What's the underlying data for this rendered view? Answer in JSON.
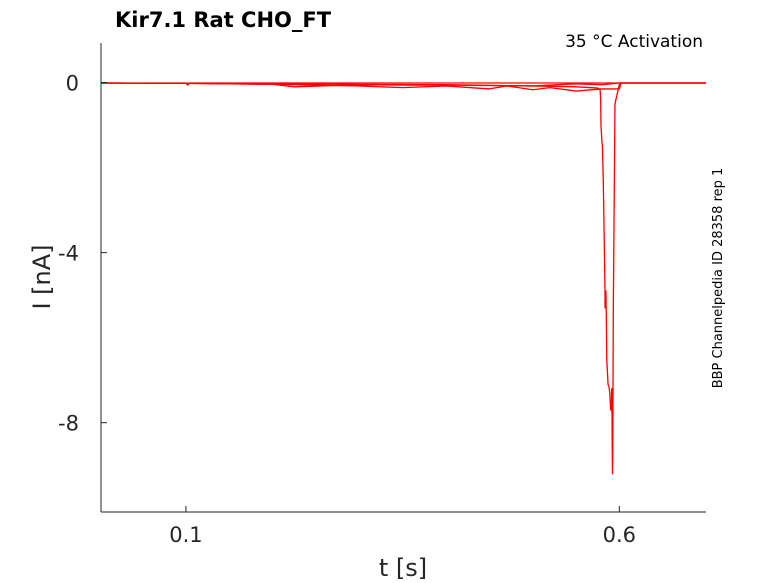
{
  "chart_data": {
    "type": "line",
    "title": "Kir7.1  Rat  CHO_FT",
    "subtitle": "35 °C  Activation",
    "side_label": "BBP Channelpedia ID 28358 rep 1",
    "xlabel": "t [s]",
    "ylabel": "I [nA]",
    "xlim": [
      0.002,
      0.7
    ],
    "ylim": [
      -10.1,
      0.93
    ],
    "xticks": [
      0.1,
      0.6
    ],
    "xtick_labels": [
      "0.1",
      "0.6"
    ],
    "yticks": [
      0,
      -4,
      -8
    ],
    "ytick_labels": [
      "0",
      "-4",
      "-8"
    ],
    "grid": false,
    "line_color": "#ff0000",
    "series": [
      {
        "x": [
          0.002,
          0.1,
          0.102,
          0.104,
          0.2,
          0.3,
          0.6,
          0.7
        ],
        "y": [
          -0.01,
          -0.01,
          -0.06,
          -0.01,
          -0.01,
          -0.01,
          -0.01,
          -0.01
        ]
      },
      {
        "x": [
          0.002,
          0.1,
          0.2,
          0.225,
          0.3,
          0.35,
          0.4,
          0.5,
          0.55,
          0.58,
          0.6,
          0.7
        ],
        "y": [
          -0.01,
          -0.02,
          -0.04,
          -0.1,
          -0.05,
          -0.06,
          -0.06,
          -0.08,
          -0.03,
          -0.05,
          -0.01,
          -0.01
        ]
      },
      {
        "x": [
          0.002,
          0.1,
          0.2,
          0.3,
          0.35,
          0.4,
          0.45,
          0.47,
          0.5,
          0.52,
          0.55,
          0.58,
          0.6,
          0.602,
          0.62,
          0.7
        ],
        "y": [
          -0.01,
          -0.02,
          -0.04,
          -0.08,
          -0.12,
          -0.08,
          -0.15,
          -0.08,
          -0.17,
          -0.12,
          -0.2,
          -0.15,
          -0.15,
          -0.01,
          -0.01,
          -0.01
        ]
      },
      {
        "x": [
          0.002,
          0.1,
          0.2,
          0.3,
          0.4,
          0.5,
          0.55,
          0.575,
          0.5778,
          0.5785,
          0.5788,
          0.58,
          0.5805,
          0.5815,
          0.5825,
          0.5835,
          0.5835,
          0.5845,
          0.585,
          0.5855,
          0.587,
          0.588,
          0.589,
          0.59,
          0.5908,
          0.591,
          0.5912,
          0.5915,
          0.5918,
          0.5921,
          0.5925,
          0.593,
          0.595,
          0.6,
          0.6005,
          0.601,
          0.6015,
          0.605,
          0.62,
          0.7
        ],
        "y": [
          -0.01,
          -0.02,
          -0.03,
          -0.04,
          -0.05,
          -0.08,
          -0.1,
          -0.13,
          -0.16,
          -0.4,
          -1.0,
          -1.4,
          -1.5,
          -2.3,
          -3.6,
          -4.9,
          -5.3,
          -4.9,
          -5.5,
          -6.5,
          -7.1,
          -7.15,
          -7.3,
          -7.7,
          -7.7,
          -7.5,
          -7.2,
          -7.6,
          -8.5,
          -9.2,
          -8.6,
          -5.5,
          -0.5,
          -0.05,
          -0.02,
          -0.02,
          -0.01,
          -0.01,
          -0.01,
          -0.01
        ]
      }
    ]
  }
}
